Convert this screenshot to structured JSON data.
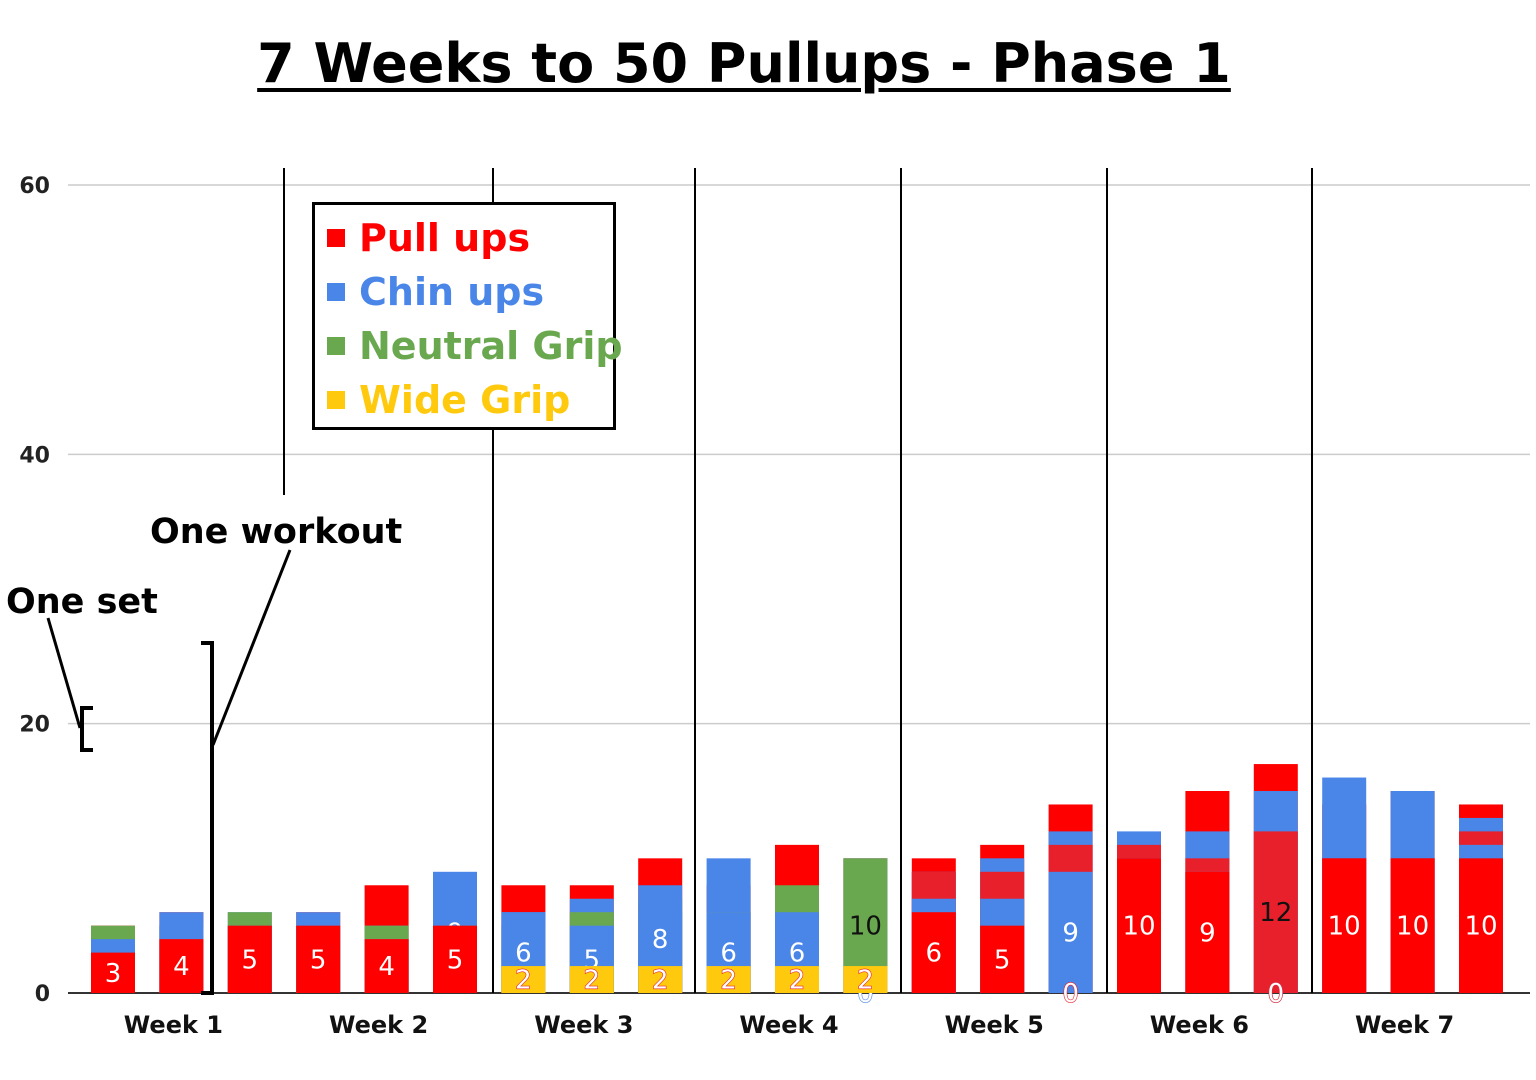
{
  "title": "7 Weeks to 50 Pullups - Phase 1",
  "annotations": {
    "one_set": "One set",
    "one_workout": "One workout"
  },
  "chart_data": {
    "type": "bar",
    "stacked": true,
    "ylim": [
      0,
      60
    ],
    "yticks": [
      "0",
      "20",
      "40",
      "60"
    ],
    "grid": true,
    "legend_position": "top-left",
    "week_labels": [
      "Week 1",
      "Week 2",
      "Week 3",
      "Week 4",
      "Week 5",
      "Week 6",
      "Week 7"
    ],
    "legend": [
      {
        "name": "Pull ups",
        "color": "#ff0000"
      },
      {
        "name": "Chin ups",
        "color": "#4a86e8"
      },
      {
        "name": "Neutral Grip",
        "color": "#6aa84f"
      },
      {
        "name": "Wide Grip",
        "color": "#ffc90e"
      }
    ],
    "colors": {
      "P": "#ff0000",
      "C": "#4a86e8",
      "N": "#6aa84f",
      "W": "#ffc90e",
      "X": "#e8202b"
    },
    "workouts": [
      {
        "week": "Week 1",
        "sets": [
          {
            "t": "P",
            "v": 5
          },
          {
            "t": "C",
            "v": 4
          },
          {
            "t": "N",
            "v": 5
          },
          {
            "t": "C",
            "v": 4
          },
          {
            "t": "P",
            "v": 3
          }
        ]
      },
      {
        "week": "Week 1",
        "sets": [
          {
            "t": "P",
            "v": 6
          },
          {
            "t": "C",
            "v": 5
          },
          {
            "t": "N",
            "v": 5
          },
          {
            "t": "C",
            "v": 6
          },
          {
            "t": "P",
            "v": 4
          }
        ]
      },
      {
        "week": "Week 1",
        "sets": [
          {
            "t": "P",
            "v": 5
          },
          {
            "t": "C",
            "v": 6
          },
          {
            "t": "N",
            "v": 6
          },
          {
            "t": "C",
            "v": 5
          },
          {
            "t": "P",
            "v": 5
          }
        ]
      },
      {
        "week": "Week 2",
        "sets": [
          {
            "t": "P",
            "v": 6
          },
          {
            "t": "C",
            "v": 5
          },
          {
            "t": "N",
            "v": 4
          },
          {
            "t": "C",
            "v": 6
          },
          {
            "t": "P",
            "v": 5
          }
        ]
      },
      {
        "week": "Week 2",
        "sets": [
          {
            "t": "P",
            "v": 8
          },
          {
            "t": "C",
            "v": 5
          },
          {
            "t": "N",
            "v": 5
          },
          {
            "t": "C",
            "v": 4
          },
          {
            "t": "P",
            "v": 4
          }
        ]
      },
      {
        "week": "Week 2",
        "sets": [
          {
            "t": "P",
            "v": 5
          },
          {
            "t": "C",
            "v": 9
          },
          {
            "t": "N",
            "v": 5
          },
          {
            "t": "C",
            "v": 5
          },
          {
            "t": "P",
            "v": 5
          }
        ]
      },
      {
        "week": "Week 3",
        "sets": [
          {
            "t": "P",
            "v": 8
          },
          {
            "t": "C",
            "v": 6
          },
          {
            "t": "N",
            "v": 5
          },
          {
            "t": "C",
            "v": 6
          },
          {
            "t": "W",
            "v": 2
          }
        ]
      },
      {
        "week": "Week 3",
        "sets": [
          {
            "t": "P",
            "v": 8
          },
          {
            "t": "C",
            "v": 7
          },
          {
            "t": "N",
            "v": 6
          },
          {
            "t": "C",
            "v": 5
          },
          {
            "t": "W",
            "v": 2
          }
        ]
      },
      {
        "week": "Week 3",
        "sets": [
          {
            "t": "P",
            "v": 10
          },
          {
            "t": "C",
            "v": 6
          },
          {
            "t": "N",
            "v": 7
          },
          {
            "t": "C",
            "v": 8
          },
          {
            "t": "W",
            "v": 2
          }
        ]
      },
      {
        "week": "Week 4",
        "sets": [
          {
            "t": "P",
            "v": 8
          },
          {
            "t": "C",
            "v": 10
          },
          {
            "t": "N",
            "v": 6
          },
          {
            "t": "C",
            "v": 6
          },
          {
            "t": "W",
            "v": 2
          }
        ]
      },
      {
        "week": "Week 4",
        "sets": [
          {
            "t": "P",
            "v": 11
          },
          {
            "t": "C",
            "v": 6
          },
          {
            "t": "N",
            "v": 8
          },
          {
            "t": "C",
            "v": 6
          },
          {
            "t": "W",
            "v": 2
          }
        ]
      },
      {
        "week": "Week 4",
        "sets": [
          {
            "t": "P",
            "v": 10
          },
          {
            "t": "C",
            "v": 10
          },
          {
            "t": "N",
            "v": 10
          },
          {
            "t": "C",
            "v": 0
          },
          {
            "t": "W",
            "v": 2
          }
        ]
      },
      {
        "week": "Week 5",
        "sets": [
          {
            "t": "P",
            "v": 10
          },
          {
            "t": "C",
            "v": 9
          },
          {
            "t": "X",
            "v": 9
          },
          {
            "t": "C",
            "v": 7
          },
          {
            "t": "P",
            "v": 6
          }
        ]
      },
      {
        "week": "Week 5",
        "sets": [
          {
            "t": "P",
            "v": 11
          },
          {
            "t": "C",
            "v": 10
          },
          {
            "t": "X",
            "v": 9
          },
          {
            "t": "C",
            "v": 7
          },
          {
            "t": "P",
            "v": 5
          }
        ]
      },
      {
        "week": "Week 5",
        "sets": [
          {
            "t": "P",
            "v": 14
          },
          {
            "t": "C",
            "v": 12
          },
          {
            "t": "X",
            "v": 11
          },
          {
            "t": "C",
            "v": 9
          },
          {
            "t": "P",
            "v": 0
          }
        ]
      },
      {
        "week": "Week 6",
        "sets": [
          {
            "t": "P",
            "v": 11
          },
          {
            "t": "C",
            "v": 12
          },
          {
            "t": "X",
            "v": 11
          },
          {
            "t": "C",
            "v": 10
          },
          {
            "t": "P",
            "v": 10
          }
        ]
      },
      {
        "week": "Week 6",
        "sets": [
          {
            "t": "P",
            "v": 15
          },
          {
            "t": "C",
            "v": 12
          },
          {
            "t": "X",
            "v": 10
          },
          {
            "t": "C",
            "v": 9
          },
          {
            "t": "P",
            "v": 9
          }
        ]
      },
      {
        "week": "Week 6",
        "sets": [
          {
            "t": "P",
            "v": 17
          },
          {
            "t": "C",
            "v": 15
          },
          {
            "t": "X",
            "v": 12
          },
          {
            "t": "C",
            "v": 0
          },
          {
            "t": "P",
            "v": 0
          }
        ]
      },
      {
        "week": "Week 7",
        "sets": [
          {
            "t": "P",
            "v": 14
          },
          {
            "t": "C",
            "v": 16
          },
          {
            "t": "X",
            "v": 10
          },
          {
            "t": "C",
            "v": 10
          },
          {
            "t": "P",
            "v": 10
          }
        ]
      },
      {
        "week": "Week 7",
        "sets": [
          {
            "t": "P",
            "v": 15
          },
          {
            "t": "C",
            "v": 15
          },
          {
            "t": "X",
            "v": 10
          },
          {
            "t": "C",
            "v": 10
          },
          {
            "t": "P",
            "v": 10
          }
        ]
      },
      {
        "week": "Week 7",
        "sets": [
          {
            "t": "P",
            "v": 14
          },
          {
            "t": "C",
            "v": 13
          },
          {
            "t": "X",
            "v": 12
          },
          {
            "t": "C",
            "v": 11
          },
          {
            "t": "P",
            "v": 10
          }
        ]
      }
    ]
  }
}
